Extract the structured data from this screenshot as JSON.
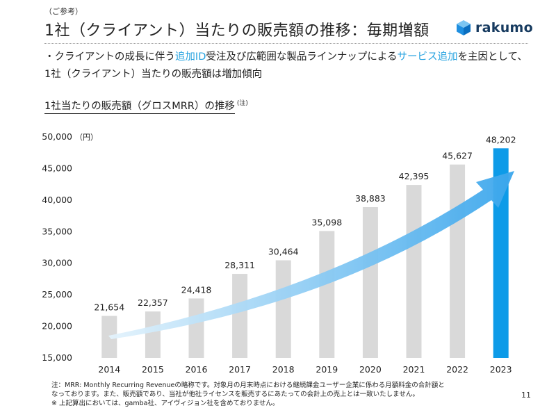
{
  "header": {
    "pre_title": "（ご参考）",
    "title": "1社（クライアント）当たりの販売額の推移：毎期増額",
    "logo_text": "rakumo"
  },
  "bullet": {
    "prefix": "・クライアントの成長に伴う",
    "hl1": "追加ID",
    "mid": "受注及び広範囲な製品ラインナップによる",
    "hl2": "サービス追加",
    "suffix": "を主因として、1社（クライアント）当たりの販売額は増加傾向"
  },
  "chart_title": {
    "text": "1社当たりの販売額（グロスMRR）の推移",
    "note": "(注)"
  },
  "colors": {
    "bar": "#d9d9d9",
    "highlight_bar": "#0d9be8",
    "accent_text": "#27a3e0",
    "arrow_start": "#e4f3fc",
    "arrow_end": "#3aa6ec",
    "logo_blue": "#1f8fe0",
    "logo_text": "#163a5f"
  },
  "chart_data": {
    "type": "bar",
    "title": "1社当たりの販売額（グロスMRR）の推移",
    "categories": [
      "2014",
      "2015",
      "2016",
      "2017",
      "2018",
      "2019",
      "2020",
      "2021",
      "2022",
      "2023"
    ],
    "values": [
      21654,
      22357,
      24418,
      28311,
      30464,
      35098,
      38883,
      42395,
      45627,
      48202
    ],
    "value_labels": [
      "21,654",
      "22,357",
      "24,418",
      "28,311",
      "30,464",
      "35,098",
      "38,883",
      "42,395",
      "45,627",
      "48,202"
    ],
    "y_ticks": [
      15000,
      20000,
      25000,
      30000,
      35000,
      40000,
      45000,
      50000
    ],
    "y_tick_labels": [
      "15,000",
      "20,000",
      "25,000",
      "30,000",
      "35,000",
      "40,000",
      "45,000",
      "50,000"
    ],
    "ylim": [
      15000,
      50000
    ],
    "y_unit": "（円）",
    "highlight_index": 9,
    "grid": false,
    "annotation": "upward trend arrow"
  },
  "footnotes": [
    "注：MRR: Monthly Recurring Revenueの略称です。対象月の月末時点における継続課金ユーザー企業に係わる月額料金の合計額と",
    "なっております。また、販売額であり、当社が他社ライセンスを販売するにあたっての会計上の売上とは一致いたしません。",
    "※ 上記算出においては、gamba社、アイヴィジョン社を含めておりません。"
  ],
  "page_number": "11"
}
